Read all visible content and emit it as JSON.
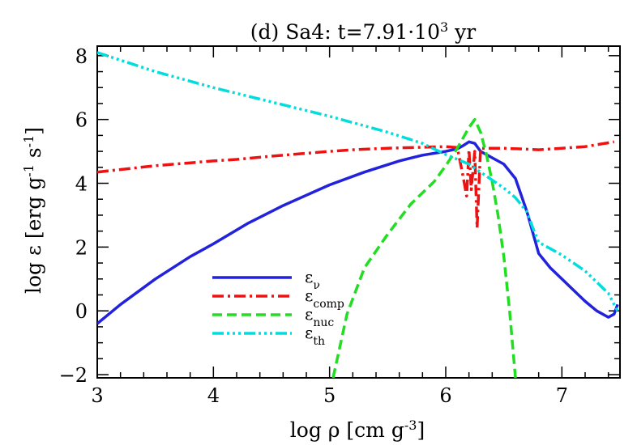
{
  "chart_data": {
    "type": "line",
    "title": "(d) Sa4: t=7.91·10",
    "title_superscript": "3",
    "title_suffix": " yr",
    "xlabel": "log ρ [cm g",
    "xlabel_superscript": "-3",
    "xlabel_suffix": "]",
    "ylabel": "log ε [erg g",
    "ylabel_sup1": "-1",
    "ylabel_mid": " s",
    "ylabel_sup2": "-1",
    "ylabel_suffix": "]",
    "xlim": [
      3.0,
      7.5
    ],
    "ylim": [
      -2.1,
      8.3
    ],
    "xticks": [
      3,
      4,
      5,
      6,
      7
    ],
    "yticks": [
      -2,
      0,
      2,
      4,
      6,
      8
    ],
    "xtick_labels": [
      "3",
      "4",
      "5",
      "6",
      "7"
    ],
    "ytick_labels": [
      "−2",
      "0",
      "2",
      "4",
      "6",
      "8"
    ],
    "legend_position": "lower-left",
    "grid": false,
    "series": [
      {
        "name": "ε",
        "subscript": "ν",
        "color": "#2222dd",
        "dash": "solid",
        "x": [
          3.0,
          3.2,
          3.5,
          3.8,
          4.0,
          4.3,
          4.6,
          5.0,
          5.3,
          5.6,
          5.8,
          6.0,
          6.1,
          6.15,
          6.2,
          6.25,
          6.3,
          6.4,
          6.5,
          6.6,
          6.7,
          6.8,
          6.9,
          7.0,
          7.1,
          7.2,
          7.3,
          7.4,
          7.45,
          7.48
        ],
        "y": [
          -0.4,
          0.2,
          1.0,
          1.7,
          2.1,
          2.75,
          3.3,
          3.95,
          4.35,
          4.7,
          4.88,
          5.0,
          5.08,
          5.18,
          5.3,
          5.25,
          5.0,
          4.8,
          4.6,
          4.15,
          3.1,
          1.8,
          1.35,
          1.0,
          0.65,
          0.3,
          0.0,
          -0.2,
          -0.1,
          0.2
        ]
      },
      {
        "name": "ε",
        "subscript": "comp",
        "color": "#ee1111",
        "dash": "dashdot",
        "x": [
          3.0,
          3.5,
          4.0,
          4.2,
          4.5,
          5.0,
          5.2,
          5.5,
          6.0,
          6.1,
          6.15,
          6.18,
          6.2,
          6.22,
          6.25,
          6.27,
          6.3,
          6.5,
          6.8,
          7.0,
          7.2,
          7.45
        ],
        "y": [
          4.35,
          4.55,
          4.7,
          4.75,
          4.85,
          5.0,
          5.05,
          5.1,
          5.15,
          5.12,
          4.2,
          3.6,
          5.05,
          3.8,
          5.0,
          2.6,
          5.1,
          5.1,
          5.05,
          5.1,
          5.15,
          5.3
        ]
      },
      {
        "name": "ε",
        "subscript": "nuc",
        "color": "#22dd22",
        "dash": "dashed",
        "x": [
          5.03,
          5.15,
          5.3,
          5.5,
          5.7,
          5.9,
          6.0,
          6.1,
          6.2,
          6.25,
          6.3,
          6.35,
          6.4,
          6.45,
          6.5,
          6.55,
          6.6
        ],
        "y": [
          -2.1,
          -0.1,
          1.35,
          2.4,
          3.35,
          4.05,
          4.55,
          5.1,
          5.75,
          6.0,
          5.6,
          4.9,
          4.05,
          3.0,
          1.7,
          0.0,
          -2.1
        ]
      },
      {
        "name": "ε",
        "subscript": "th",
        "color": "#00dddd",
        "dash": "dashdotdotdot",
        "x": [
          3.0,
          3.5,
          4.0,
          4.5,
          5.0,
          5.5,
          5.8,
          6.0,
          6.2,
          6.4,
          6.5,
          6.6,
          6.7,
          6.75,
          6.8,
          6.9,
          7.0,
          7.1,
          7.2,
          7.3,
          7.4,
          7.45,
          7.48
        ],
        "y": [
          8.1,
          7.5,
          7.0,
          6.55,
          6.1,
          5.6,
          5.25,
          4.9,
          4.6,
          4.1,
          3.85,
          3.55,
          3.1,
          2.6,
          2.15,
          1.95,
          1.75,
          1.5,
          1.25,
          0.9,
          0.55,
          0.2,
          0.0
        ]
      }
    ]
  }
}
